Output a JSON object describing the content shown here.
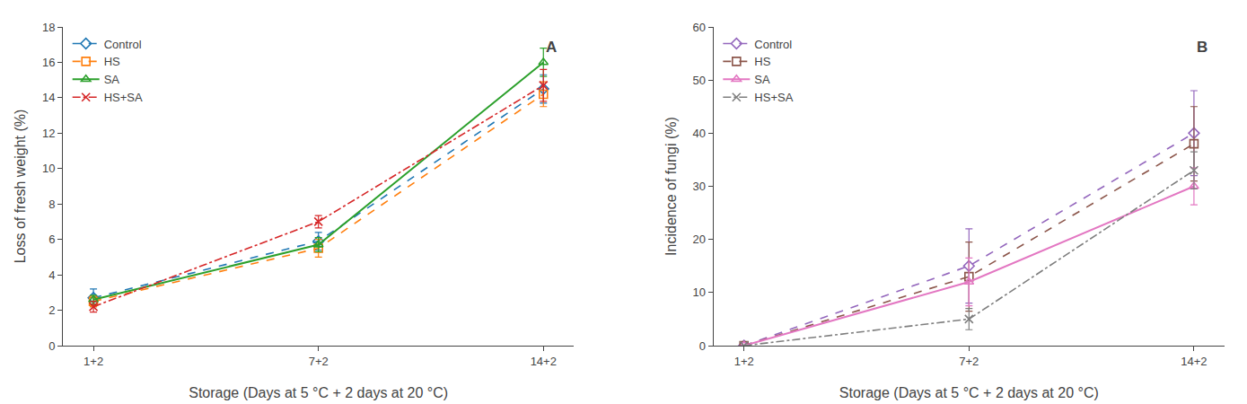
{
  "chart_data": [
    {
      "type": "line",
      "title": "A",
      "xlabel": "Storage (Days at 5 °C + 2 days at 20 °C)",
      "ylabel": "Loss of fresh weight (%)",
      "categories": [
        "1+2",
        "7+2",
        "14+2"
      ],
      "ylim": [
        0,
        18
      ],
      "yticks": [
        0,
        2,
        4,
        6,
        8,
        10,
        12,
        14,
        16,
        18
      ],
      "grid": false,
      "legend": "upper left",
      "series": [
        {
          "name": "Control",
          "values": [
            2.7,
            5.9,
            14.5
          ],
          "errors": [
            0.5,
            0.5,
            0.8
          ],
          "marker": "diamond",
          "line_style": "dashed"
        },
        {
          "name": "HS",
          "values": [
            2.5,
            5.5,
            14.2
          ],
          "errors": [
            0.3,
            0.5,
            0.7
          ],
          "marker": "square",
          "line_style": "dashed"
        },
        {
          "name": "SA",
          "values": [
            2.6,
            5.7,
            16.0
          ],
          "errors": [
            0.25,
            0.4,
            0.8
          ],
          "marker": "triangle",
          "line_style": "solid"
        },
        {
          "name": "HS+SA",
          "values": [
            2.2,
            7.0,
            14.7
          ],
          "errors": [
            0.3,
            0.35,
            0.9
          ],
          "marker": "x",
          "line_style": "dotdash"
        }
      ]
    },
    {
      "type": "line",
      "title": "B",
      "xlabel": "Storage (Days at 5 °C + 2 days at 20 °C)",
      "ylabel": "Incidence of fungi (%)",
      "categories": [
        "1+2",
        "7+2",
        "14+2"
      ],
      "ylim": [
        0,
        60
      ],
      "yticks": [
        0,
        10,
        20,
        30,
        40,
        50,
        60
      ],
      "grid": false,
      "legend": "upper left",
      "series": [
        {
          "name": "Control",
          "values": [
            0.0,
            15.0,
            40.0
          ],
          "errors": [
            0.0,
            7.0,
            8.0
          ],
          "marker": "diamond",
          "line_style": "dashed"
        },
        {
          "name": "HS",
          "values": [
            0.0,
            13.0,
            38.0
          ],
          "errors": [
            0.0,
            6.5,
            7.0
          ],
          "marker": "square",
          "line_style": "dashed"
        },
        {
          "name": "SA",
          "values": [
            0.0,
            12.0,
            30.0
          ],
          "errors": [
            0.0,
            4.5,
            3.5
          ],
          "marker": "triangle",
          "line_style": "solid"
        },
        {
          "name": "HS+SA",
          "values": [
            0.0,
            5.0,
            33.0
          ],
          "errors": [
            0.0,
            2.0,
            3.5
          ],
          "marker": "x",
          "line_style": "dotdash"
        }
      ]
    }
  ]
}
